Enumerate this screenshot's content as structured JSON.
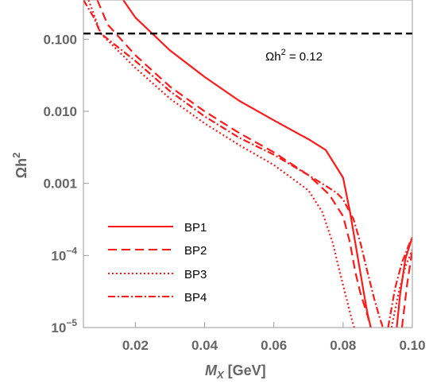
{
  "chart_data": {
    "type": "line",
    "xlabel_main": "M",
    "xlabel_sub": "X",
    "xlabel_unit": " [GeV]",
    "ylabel_main": "Ωh",
    "ylabel_sup": "2",
    "xlim": [
      0.005,
      0.1
    ],
    "ylim": [
      1e-05,
      0.35
    ],
    "yscale": "log",
    "x_ticks": [
      0.02,
      0.04,
      0.06,
      0.08,
      0.1
    ],
    "x_tick_labels": [
      "0.02",
      "0.04",
      "0.06",
      "0.08",
      "0.10"
    ],
    "y_ticks": [
      0.1,
      0.01,
      0.001,
      0.0001,
      1e-05
    ],
    "y_tick_labels": [
      {
        "base": "0.100",
        "sup": ""
      },
      {
        "base": "0.010",
        "sup": ""
      },
      {
        "base": "0.001",
        "sup": ""
      },
      {
        "base": "10",
        "sup": "−4"
      },
      {
        "base": "10",
        "sup": "−5"
      }
    ],
    "reference_line": {
      "y": 0.12,
      "label_main": "Ωh",
      "label_sup": "2",
      "label_rest": " = 0.12",
      "color": "#000000"
    },
    "line_color": "#ff1a1a",
    "series": [
      {
        "name": "BP1",
        "dash": "solid",
        "segments": [
          {
            "x": [
              0.0165,
              0.02,
              0.03,
              0.04,
              0.05,
              0.06,
              0.07,
              0.075,
              0.08,
              0.082,
              0.084,
              0.086,
              0.087,
              0.088
            ],
            "y": [
              0.35,
              0.2,
              0.07,
              0.03,
              0.014,
              0.0075,
              0.0041,
              0.0029,
              0.0012,
              0.0004,
              0.00011,
              3e-05,
              1.6e-05,
              1e-05
            ]
          },
          {
            "x": [
              0.0955,
              0.0965,
              0.098,
              0.1
            ],
            "y": [
              1e-05,
              3e-05,
              9e-05,
              0.00018
            ]
          }
        ]
      },
      {
        "name": "BP2",
        "dash": "dashed",
        "segments": [
          {
            "x": [
              0.009,
              0.012,
              0.02,
              0.03,
              0.04,
              0.05,
              0.06,
              0.07,
              0.076,
              0.08,
              0.082,
              0.0835,
              0.085,
              0.087,
              0.088
            ],
            "y": [
              0.35,
              0.16,
              0.06,
              0.022,
              0.01,
              0.005,
              0.0027,
              0.0013,
              0.0007,
              0.00035,
              0.00015,
              6e-05,
              3e-05,
              1.5e-05,
              1e-05
            ]
          },
          {
            "x": [
              0.097,
              0.0985,
              0.1
            ],
            "y": [
              1e-05,
              4e-05,
              0.00012
            ]
          }
        ]
      },
      {
        "name": "BP3",
        "dash": "dotted",
        "segments": [
          {
            "x": [
              0.0065,
              0.01,
              0.02,
              0.03,
              0.04,
              0.05,
              0.06,
              0.07,
              0.074,
              0.077,
              0.079,
              0.081,
              0.0825,
              0.0832
            ],
            "y": [
              0.35,
              0.12,
              0.04,
              0.015,
              0.0068,
              0.0034,
              0.0018,
              0.0008,
              0.0004,
              0.00015,
              6e-05,
              2.5e-05,
              1.3e-05,
              1e-05
            ]
          },
          {
            "x": [
              0.094,
              0.096,
              0.098,
              0.1
            ],
            "y": [
              1e-05,
              3e-05,
              7e-05,
              0.00012
            ]
          }
        ]
      },
      {
        "name": "BP4",
        "dash": "dashdot",
        "segments": [
          {
            "x": [
              0.005,
              0.008,
              0.01,
              0.02,
              0.03,
              0.04,
              0.05,
              0.06,
              0.07,
              0.078,
              0.08,
              0.083,
              0.085,
              0.087,
              0.089,
              0.0905,
              0.0915
            ],
            "y": [
              0.35,
              0.2,
              0.12,
              0.05,
              0.019,
              0.0085,
              0.0043,
              0.0025,
              0.0013,
              0.00075,
              0.0006,
              0.00032,
              0.00015,
              6e-05,
              2.5e-05,
              1.4e-05,
              1e-05
            ]
          },
          {
            "x": [
              0.093,
              0.095,
              0.097,
              0.099,
              0.1
            ],
            "y": [
              1e-05,
              3.5e-05,
              8e-05,
              0.00014,
              0.00018
            ]
          }
        ]
      }
    ]
  }
}
